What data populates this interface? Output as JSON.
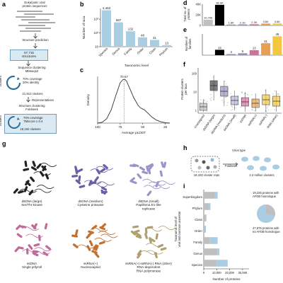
{
  "panels": {
    "a": "a",
    "b": "b",
    "c": "c",
    "d": "d",
    "e": "e",
    "f": "f",
    "g": "g",
    "h": "h",
    "i": "i"
  },
  "flow": {
    "source": "Eukaryotic viral\nprotein sequences",
    "step1": "Structure prediction",
    "count1": "67,715\nstructures",
    "step2": "Sequence clustering\nMMseqs2",
    "ring2": "70% coverage\n20% identity",
    "count2": "21,913 clusters",
    "reps": "Representatives",
    "step3": "Structure clustering\nFoldseek",
    "ring3": "70% coverage\nTMscore ≥ 0.4",
    "count3": "18,192 clusters",
    "side1": "clusters",
    "side2": "clusters"
  },
  "chart_b": {
    "type": "bar",
    "categories": [
      "Species",
      "Genus",
      "Family",
      "Order",
      "Class",
      "Phylum"
    ],
    "values": [
      4463,
      587,
      132,
      48,
      31,
      13
    ],
    "value_labels": [
      "4,463",
      "587",
      "132",
      "48",
      "31",
      "13"
    ],
    "ylabel": "Number of taxa",
    "xlabel": "Taxonomic level",
    "yticks": [
      "10³",
      "10²",
      "10"
    ],
    "color": "#a9cde3"
  },
  "chart_c": {
    "type": "line",
    "peak_label": "70.67",
    "xlabel": "Average pLDDT",
    "ylabel": "Density",
    "xticks": [
      "100",
      "75",
      "50",
      "25"
    ],
    "density_x": [
      100,
      95,
      90,
      85,
      80,
      75,
      72,
      70,
      68,
      65,
      60,
      55,
      52,
      50,
      48,
      45,
      40,
      35,
      30,
      25,
      20
    ],
    "density_y": [
      0.0,
      0.02,
      0.1,
      0.3,
      0.62,
      0.92,
      0.99,
      1.0,
      0.96,
      0.82,
      0.58,
      0.4,
      0.34,
      0.32,
      0.3,
      0.24,
      0.14,
      0.07,
      0.03,
      0.01,
      0.0
    ]
  },
  "chart_d": {
    "type": "bar",
    "ylabel": "Total no. of\nproteins",
    "yticks": [
      "40K",
      "20K",
      "0"
    ],
    "values": [
      10796,
      38899,
      1750,
      2060,
      2292,
      3558,
      3631
    ],
    "value_labels": [
      "10,796",
      "38.9K",
      "1.8K",
      "2.1K",
      "2.3K",
      "3.6K",
      "3.6K"
    ],
    "colors": [
      "#bfbfbf",
      "#000000",
      "#9b8fc0",
      "#9b8fc0",
      "#d36fa0",
      "#e8a050",
      "#f2c840"
    ]
  },
  "chart_e": {
    "type": "bar",
    "ylabel": "Number of\nfamilies",
    "values": [
      0,
      14,
      3,
      5,
      13,
      31,
      49
    ],
    "value_labels": [
      "",
      "14",
      "3",
      "5",
      "13",
      "31",
      "49"
    ],
    "colors": [
      "#bfbfbf",
      "#000000",
      "#9b8fc0",
      "#9b8fc0",
      "#d36fa0",
      "#e8a050",
      "#f2c840"
    ]
  },
  "chart_f": {
    "type": "box",
    "ylabel": "Protein clusters\nper taxa",
    "categories": [
      "Unassigned",
      "dsDNA (large)",
      "dsDNA (medium)",
      "dsDNA (small)",
      "ssDNA",
      "ssRNA(+)",
      "ssRNA(-)",
      "RNA (other)"
    ],
    "colors": [
      "#bfbfbf",
      "#444444",
      "#9b8fc0",
      "#b9b0d6",
      "#d36fa0",
      "#e8a050",
      "#f2c840",
      "#f2c840"
    ],
    "yticks": [
      "100",
      "10",
      "1"
    ]
  },
  "panel_g": {
    "items": [
      {
        "label": "dsDNA (large)\nSer/Thr kinase",
        "color": "#222222"
      },
      {
        "label": "dsDNA (medium)\nCysteine protease",
        "color": "#6a5fa8"
      },
      {
        "label": "dsDNA (small)\nPapilloma E1-like\nreplicase",
        "color": "#9d93c9"
      },
      {
        "label": "ssDNA\nSingle jellyroll",
        "color": "#c06a9a"
      },
      {
        "label": "ssRNA(+)\nNucleocapsid",
        "color": "#c07030"
      },
      {
        "label": "ssRNA(+) ssRNA(-) RNA (other)\nRNA-dependent\nRNA polymerase",
        "color": "#b0a070"
      }
    ]
  },
  "panel_h": {
    "virus_type": "Virus type",
    "left": "18,192 cluster reps",
    "arrow": "Foldseek",
    "right": "2.3 million clusters"
  },
  "chart_i": {
    "type": "bar",
    "categories": [
      "Superkingdom",
      "Phylum",
      "Class",
      "Order",
      "Family",
      "Genus",
      "Species"
    ],
    "ylabel": "Taxonomic level of\nviral last common ancestor",
    "xlabel": "Number of proteins",
    "xticks": [
      "0",
      "10,000",
      "20,000",
      "30,000"
    ],
    "gray_values": [
      8500,
      4300,
      1600,
      1100,
      4800,
      10500,
      9800
    ],
    "blue_values": [
      2200,
      900,
      500,
      600,
      5900,
      1600,
      8700
    ],
    "colors": {
      "with": "#bfbfbf",
      "without": "#a9cde3"
    },
    "legend_with": "19,226 proteins with\nAFDB homologue",
    "legend_without": "47,676 proteins with\nno AFDB homologue",
    "pie_fraction_with": 0.29
  }
}
